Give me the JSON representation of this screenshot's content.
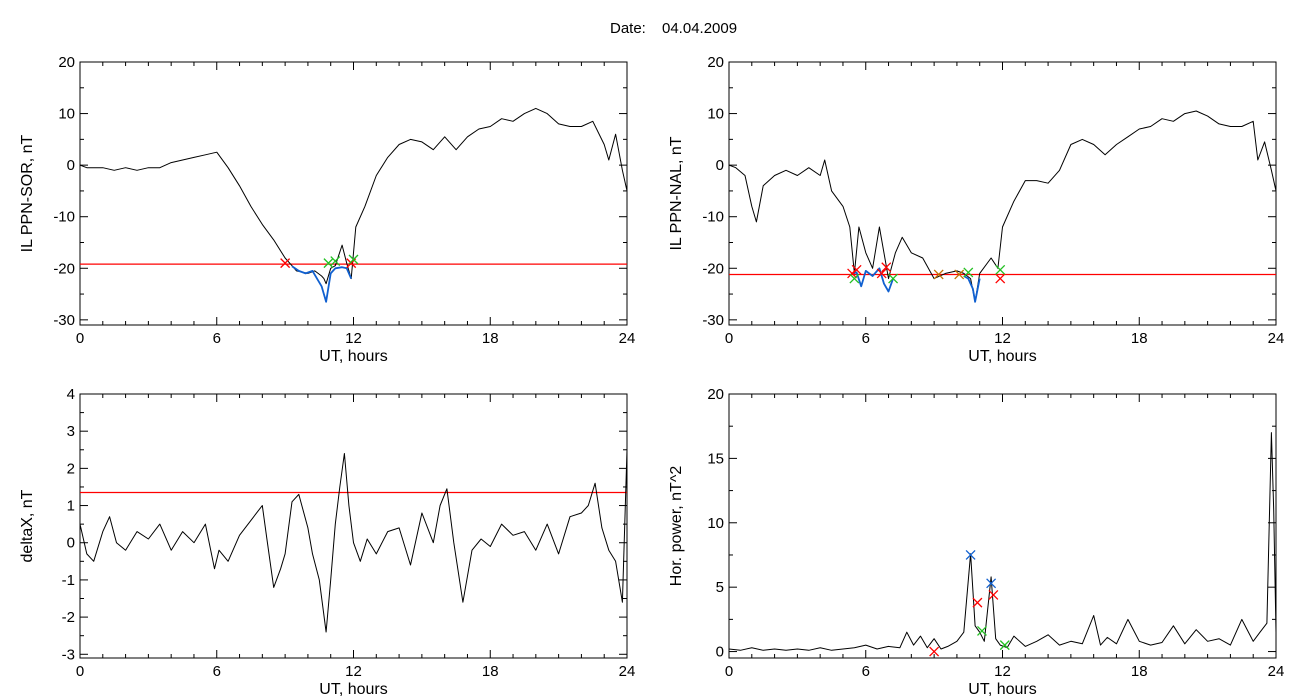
{
  "header": {
    "date_label": "Date:",
    "date_value": "04.04.2009"
  },
  "colors": {
    "trace": "#000000",
    "threshold": "#ff0000",
    "segment": "#1060d0",
    "marker_red": "#ff0000",
    "marker_green": "#22c022",
    "marker_blue": "#1060d0"
  },
  "chart_data": [
    {
      "type": "line",
      "xlabel": "UT, hours",
      "ylabel": "IL PPN-SOR, nT",
      "xlim": [
        0,
        24
      ],
      "ylim": [
        -31,
        20
      ],
      "xticks": [
        0,
        6,
        12,
        18,
        24
      ],
      "yticks": [
        -30,
        -20,
        -10,
        0,
        10,
        20
      ],
      "threshold": -19.2,
      "series": [
        {
          "role": "trace",
          "x": [
            0,
            0.3,
            1,
            1.5,
            2,
            2.5,
            3,
            3.5,
            4,
            4.5,
            5,
            5.5,
            6,
            6.5,
            7,
            7.5,
            8,
            8.5,
            9,
            9.3,
            9.5,
            10,
            10.3,
            10.6,
            10.7,
            10.8,
            11,
            11.2,
            11.5,
            11.7,
            11.9,
            12.1,
            12.5,
            13,
            13.5,
            14,
            14.5,
            15,
            15.5,
            16,
            16.5,
            17,
            17.5,
            18,
            18.5,
            19,
            19.5,
            20,
            20.5,
            21,
            21.5,
            22,
            22.5,
            23,
            23.2,
            23.5,
            23.8,
            24
          ],
          "y": [
            0,
            -0.5,
            -0.5,
            -1,
            -0.5,
            -1,
            -0.5,
            -0.5,
            0.5,
            1,
            1.5,
            2,
            2.5,
            -0.5,
            -4,
            -8,
            -11.5,
            -14.5,
            -18,
            -19.5,
            -20.5,
            -21,
            -20.5,
            -21.5,
            -22,
            -23,
            -20,
            -19.5,
            -15.5,
            -19,
            -22,
            -12,
            -8,
            -2,
            1.5,
            4,
            5,
            4.5,
            3,
            5.5,
            3,
            5.5,
            7,
            7.5,
            9,
            8.5,
            10,
            11,
            10,
            8,
            7.5,
            7.5,
            8.5,
            4,
            1,
            6,
            -1,
            -5
          ]
        },
        {
          "role": "segment",
          "x": [
            9.3,
            9.6,
            9.9,
            10.2,
            10.4,
            10.6,
            10.8,
            11,
            11.2,
            11.5,
            11.7,
            11.9
          ],
          "y": [
            -19.6,
            -20.5,
            -21,
            -20.5,
            -22,
            -23.5,
            -26.5,
            -21,
            -20,
            -19.8,
            -20,
            -22
          ]
        }
      ],
      "markers": [
        {
          "color": "red",
          "x": 9.0,
          "y": -19.0
        },
        {
          "color": "green",
          "x": 10.9,
          "y": -19.0
        },
        {
          "color": "green",
          "x": 11.2,
          "y": -18.6
        },
        {
          "color": "red",
          "x": 11.9,
          "y": -19.0
        },
        {
          "color": "green",
          "x": 12.0,
          "y": -18.3
        }
      ]
    },
    {
      "type": "line",
      "xlabel": "UT, hours",
      "ylabel": "IL PPN-NAL, nT",
      "xlim": [
        0,
        24
      ],
      "ylim": [
        -31,
        20
      ],
      "xticks": [
        0,
        6,
        12,
        18,
        24
      ],
      "yticks": [
        -30,
        -20,
        -10,
        0,
        10,
        20
      ],
      "threshold": -21.2,
      "series": [
        {
          "role": "trace",
          "x": [
            0,
            0.3,
            0.7,
            1,
            1.2,
            1.5,
            2,
            2.5,
            3,
            3.5,
            4,
            4.2,
            4.5,
            5,
            5.3,
            5.5,
            5.7,
            6,
            6.3,
            6.6,
            7,
            7.3,
            7.6,
            8,
            8.5,
            9,
            9.5,
            10,
            10.3,
            10.6,
            10.8,
            11,
            11.5,
            11.8,
            12,
            12.5,
            13,
            13.5,
            14,
            14.5,
            15,
            15.5,
            16,
            16.5,
            17,
            17.5,
            18,
            18.5,
            19,
            19.5,
            20,
            20.5,
            21,
            21.5,
            22,
            22.5,
            23,
            23.2,
            23.5,
            23.8,
            24
          ],
          "y": [
            0,
            -0.5,
            -2,
            -8,
            -11,
            -4,
            -2,
            -1,
            -2,
            -0.5,
            -2,
            1,
            -5,
            -8,
            -12,
            -21,
            -12,
            -17,
            -20,
            -12,
            -22,
            -17,
            -14,
            -17,
            -18,
            -22,
            -21,
            -20.5,
            -21,
            -22,
            -26.5,
            -21,
            -18,
            -20,
            -12,
            -7,
            -3,
            -3,
            -3.5,
            -1,
            4,
            5,
            4,
            2,
            4,
            5.5,
            7,
            7.5,
            9,
            8.5,
            10,
            10.5,
            9.5,
            8,
            7.5,
            7.5,
            8.5,
            1,
            4.5,
            -1,
            -5
          ]
        },
        {
          "role": "segment",
          "x": [
            5.4,
            5.6,
            5.8,
            6.0,
            6.3,
            6.6,
            6.8,
            7.0,
            7.2
          ],
          "y": [
            -21,
            -20.8,
            -23.5,
            -20.5,
            -21.5,
            -20,
            -23,
            -24.5,
            -22
          ]
        },
        {
          "role": "segment",
          "x": [
            10.3,
            10.5,
            10.7,
            10.8,
            11.0
          ],
          "y": [
            -21.5,
            -22,
            -24,
            -26.5,
            -22
          ]
        }
      ],
      "markers": [
        {
          "color": "red",
          "x": 5.4,
          "y": -21.0
        },
        {
          "color": "red",
          "x": 5.6,
          "y": -20.3
        },
        {
          "color": "green",
          "x": 5.5,
          "y": -22.0
        },
        {
          "color": "red",
          "x": 6.7,
          "y": -21.0
        },
        {
          "color": "red",
          "x": 6.9,
          "y": -19.8
        },
        {
          "color": "green",
          "x": 7.2,
          "y": -22.0
        },
        {
          "color": "orange",
          "x": 9.2,
          "y": -21.2
        },
        {
          "color": "orange",
          "x": 10.1,
          "y": -21.2
        },
        {
          "color": "green",
          "x": 10.5,
          "y": -20.8
        },
        {
          "color": "red",
          "x": 11.9,
          "y": -22.0
        },
        {
          "color": "green",
          "x": 11.9,
          "y": -20.3
        }
      ]
    },
    {
      "type": "line",
      "xlabel": "UT, hours",
      "ylabel": "deltaX, nT",
      "xlim": [
        0,
        24
      ],
      "ylim": [
        -3.1,
        4
      ],
      "xticks": [
        0,
        6,
        12,
        18,
        24
      ],
      "yticks": [
        -3,
        -2,
        -1,
        0,
        1,
        2,
        3,
        4
      ],
      "threshold": 1.35,
      "series": [
        {
          "role": "trace",
          "x": [
            0,
            0.3,
            0.6,
            1,
            1.3,
            1.6,
            2,
            2.5,
            3,
            3.5,
            4,
            4.5,
            5,
            5.5,
            5.9,
            6.1,
            6.5,
            7,
            7.5,
            8,
            8.2,
            8.5,
            8.8,
            9,
            9.3,
            9.6,
            10,
            10.2,
            10.5,
            10.8,
            11,
            11.2,
            11.4,
            11.6,
            11.8,
            12,
            12.3,
            12.6,
            13,
            13.5,
            14,
            14.5,
            15,
            15.5,
            15.8,
            16.1,
            16.4,
            16.8,
            17.2,
            17.6,
            18,
            18.5,
            19,
            19.5,
            20,
            20.5,
            21,
            21.5,
            22,
            22.3,
            22.6,
            22.9,
            23.2,
            23.5,
            23.8,
            24
          ],
          "y": [
            0.5,
            -0.3,
            -0.5,
            0.3,
            0.7,
            0,
            -0.2,
            0.3,
            0.1,
            0.5,
            -0.2,
            0.3,
            0,
            0.5,
            -0.7,
            -0.2,
            -0.5,
            0.2,
            0.6,
            1,
            0.1,
            -1.2,
            -0.7,
            -0.3,
            1.1,
            1.3,
            0.4,
            -0.3,
            -1,
            -2.4,
            -1,
            0.5,
            1.5,
            2.4,
            1,
            0,
            -0.5,
            0.1,
            -0.3,
            0.3,
            0.4,
            -0.6,
            0.8,
            0,
            1,
            1.45,
            0,
            -1.6,
            -0.2,
            0.1,
            -0.1,
            0.5,
            0.2,
            0.3,
            -0.2,
            0.5,
            -0.3,
            0.7,
            0.8,
            1,
            1.6,
            0.4,
            -0.2,
            -0.5,
            -1.6,
            2.5
          ]
        }
      ]
    },
    {
      "type": "line",
      "xlabel": "UT, hours",
      "ylabel": "Hor. power, nT^2",
      "xlim": [
        0,
        24
      ],
      "ylim": [
        -0.5,
        20
      ],
      "xticks": [
        0,
        6,
        12,
        18,
        24
      ],
      "yticks": [
        0,
        5,
        10,
        15,
        20
      ],
      "series": [
        {
          "role": "trace",
          "x": [
            0,
            0.5,
            1,
            1.5,
            2,
            2.5,
            3,
            3.5,
            4,
            4.5,
            5,
            5.5,
            6,
            6.5,
            7,
            7.5,
            7.8,
            8.1,
            8.4,
            8.7,
            9,
            9.3,
            9.6,
            10,
            10.3,
            10.6,
            10.8,
            11,
            11.2,
            11.5,
            11.7,
            11.9,
            12.2,
            12.5,
            13,
            13.5,
            14,
            14.5,
            15,
            15.5,
            16,
            16.3,
            16.6,
            17,
            17.5,
            18,
            18.5,
            19,
            19.5,
            20,
            20.5,
            21,
            21.5,
            22,
            22.5,
            23,
            23.3,
            23.6,
            23.8,
            23.9,
            24
          ],
          "y": [
            0.2,
            0.1,
            0.3,
            0.1,
            0.2,
            0.1,
            0.2,
            0.1,
            0.3,
            0.1,
            0.2,
            0.3,
            0.5,
            0.2,
            0.4,
            0.3,
            1.5,
            0.5,
            1.2,
            0.3,
            1,
            0.2,
            0.4,
            0.8,
            1.5,
            7.6,
            2,
            1.5,
            0.8,
            5.8,
            1,
            0.5,
            0.3,
            1.2,
            0.4,
            0.8,
            1.3,
            0.5,
            0.8,
            0.6,
            2.8,
            0.5,
            1.1,
            0.6,
            2.5,
            0.8,
            0.5,
            0.7,
            2,
            0.6,
            1.7,
            0.8,
            1,
            0.5,
            2.5,
            0.8,
            1.5,
            2.2,
            17,
            11,
            1.5
          ]
        }
      ],
      "markers": [
        {
          "color": "red",
          "x": 9.0,
          "y": 0.0
        },
        {
          "color": "blue",
          "x": 10.6,
          "y": 7.5
        },
        {
          "color": "red",
          "x": 10.9,
          "y": 3.8
        },
        {
          "color": "green",
          "x": 11.1,
          "y": 1.6
        },
        {
          "color": "blue",
          "x": 11.5,
          "y": 5.3
        },
        {
          "color": "red",
          "x": 11.6,
          "y": 4.4
        },
        {
          "color": "green",
          "x": 12.1,
          "y": 0.5
        }
      ]
    }
  ]
}
